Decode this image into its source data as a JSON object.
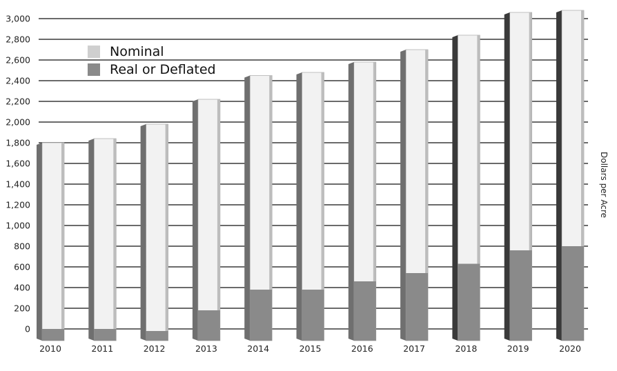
{
  "chart_data": {
    "type": "bar",
    "title": "",
    "xlabel": "",
    "ylabel": "Dollars per Acre",
    "ylim": [
      0,
      3000
    ],
    "yticks": [
      0,
      200,
      400,
      600,
      800,
      1000,
      1200,
      1400,
      1600,
      1800,
      2000,
      2200,
      2400,
      2600,
      2800,
      3000
    ],
    "ytick_labels": [
      "0",
      "200",
      "400",
      "600",
      "800",
      "1,000",
      "1,200",
      "1,400",
      "1,600",
      "1,800",
      "2,000",
      "2,200",
      "2,400",
      "2,600",
      "2,800",
      "3,000"
    ],
    "categories": [
      "2010",
      "2011",
      "2012",
      "2013",
      "2014",
      "2015",
      "2016",
      "2017",
      "2018",
      "2019",
      "2020"
    ],
    "series": [
      {
        "name": "Nominal",
        "color": "#f2f2f2",
        "values": [
          1800,
          1840,
          1980,
          2220,
          2450,
          2480,
          2580,
          2700,
          2840,
          3060,
          3080
        ]
      },
      {
        "name": "Real or Deflated",
        "color": "#8a8a8a",
        "values": [
          0,
          0,
          -20,
          180,
          380,
          380,
          460,
          540,
          630,
          760,
          800
        ]
      }
    ],
    "legend_position": "top-left",
    "grid": true
  }
}
